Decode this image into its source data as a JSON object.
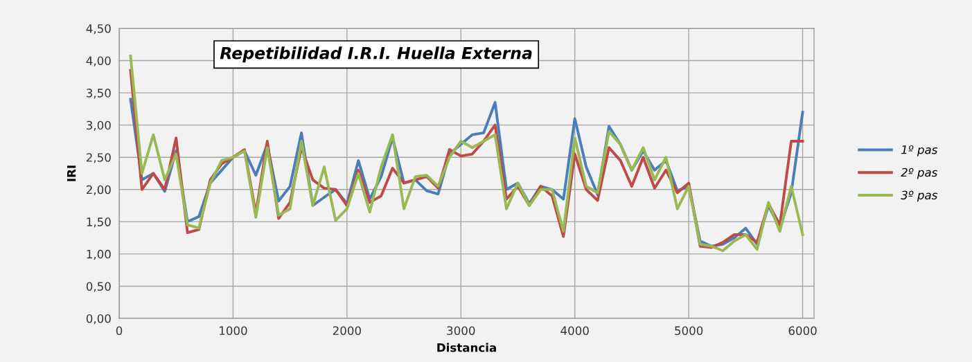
{
  "chart_data": {
    "type": "line",
    "title": "Repetibilidad I.R.I. Huella Externa",
    "xlabel": "Distancia",
    "ylabel": "IRI",
    "x": [
      100,
      200,
      300,
      400,
      500,
      600,
      700,
      800,
      900,
      1000,
      1100,
      1200,
      1300,
      1400,
      1500,
      1600,
      1700,
      1800,
      1900,
      2000,
      2100,
      2200,
      2300,
      2400,
      2500,
      2600,
      2700,
      2800,
      2900,
      3000,
      3100,
      3200,
      3300,
      3400,
      3500,
      3600,
      3700,
      3800,
      3900,
      4000,
      4100,
      4200,
      4300,
      4400,
      4500,
      4600,
      4700,
      4800,
      4900,
      5000,
      5100,
      5200,
      5300,
      5400,
      5500,
      5600,
      5700,
      5800,
      5900,
      6000
    ],
    "series": [
      {
        "name": "1º pas",
        "color": "#4a7ebb",
        "values": [
          3.4,
          2.15,
          2.25,
          1.97,
          2.6,
          1.5,
          1.58,
          2.1,
          2.3,
          2.5,
          2.6,
          2.22,
          2.7,
          1.82,
          2.05,
          2.88,
          1.75,
          1.88,
          2.0,
          1.78,
          2.45,
          1.85,
          2.2,
          2.8,
          2.1,
          2.15,
          1.98,
          1.93,
          2.55,
          2.7,
          2.85,
          2.88,
          3.35,
          2.0,
          2.1,
          1.78,
          2.05,
          2.0,
          1.85,
          3.1,
          2.35,
          1.92,
          2.98,
          2.7,
          2.3,
          2.6,
          2.3,
          2.45,
          1.98,
          2.05,
          1.2,
          1.12,
          1.15,
          1.25,
          1.4,
          1.15,
          1.75,
          1.4,
          1.95,
          3.2
        ]
      },
      {
        "name": "2º pas",
        "color": "#be4b48",
        "values": [
          3.85,
          2.0,
          2.25,
          2.0,
          2.8,
          1.33,
          1.38,
          2.15,
          2.4,
          2.5,
          2.62,
          1.63,
          2.75,
          1.55,
          1.8,
          2.65,
          2.15,
          2.02,
          2.0,
          1.75,
          2.3,
          1.8,
          1.9,
          2.33,
          2.1,
          2.15,
          2.2,
          2.02,
          2.62,
          2.52,
          2.55,
          2.75,
          3.0,
          1.85,
          2.05,
          1.75,
          2.05,
          1.9,
          1.27,
          2.55,
          2.0,
          1.83,
          2.65,
          2.45,
          2.05,
          2.5,
          2.02,
          2.3,
          1.95,
          2.1,
          1.12,
          1.1,
          1.18,
          1.3,
          1.3,
          1.18,
          1.78,
          1.45,
          2.75,
          2.75
        ]
      },
      {
        "name": "3º pas",
        "color": "#98b954",
        "values": [
          4.07,
          2.25,
          2.85,
          2.15,
          2.55,
          1.45,
          1.4,
          2.1,
          2.45,
          2.5,
          2.6,
          1.57,
          2.65,
          1.6,
          1.7,
          2.75,
          1.75,
          2.35,
          1.52,
          1.7,
          2.25,
          1.65,
          2.35,
          2.85,
          1.7,
          2.2,
          2.22,
          2.05,
          2.5,
          2.75,
          2.65,
          2.75,
          2.85,
          1.7,
          2.1,
          1.75,
          2.0,
          2.0,
          1.35,
          2.8,
          2.05,
          1.95,
          2.9,
          2.7,
          2.3,
          2.65,
          2.15,
          2.5,
          1.7,
          2.05,
          1.15,
          1.12,
          1.05,
          1.2,
          1.3,
          1.07,
          1.8,
          1.35,
          2.05,
          1.3
        ]
      }
    ],
    "xlim": [
      0,
      6100
    ],
    "xticks": [
      0,
      1000,
      2000,
      3000,
      4000,
      5000,
      6000
    ],
    "ylim": [
      0,
      4.5
    ],
    "yticks": [
      {
        "value": 0,
        "label": "0,00"
      },
      {
        "value": 0.5,
        "label": "0,50"
      },
      {
        "value": 1,
        "label": "1,00"
      },
      {
        "value": 1.5,
        "label": "1,50"
      },
      {
        "value": 2,
        "label": "2,00"
      },
      {
        "value": 2.5,
        "label": "2,50"
      },
      {
        "value": 3,
        "label": "3,00"
      },
      {
        "value": 3.5,
        "label": "3,50"
      },
      {
        "value": 4,
        "label": "4,00"
      },
      {
        "value": 4.5,
        "label": "4,50"
      }
    ],
    "grid": true,
    "legend": "right",
    "marker": "none",
    "line_style": "solid"
  }
}
